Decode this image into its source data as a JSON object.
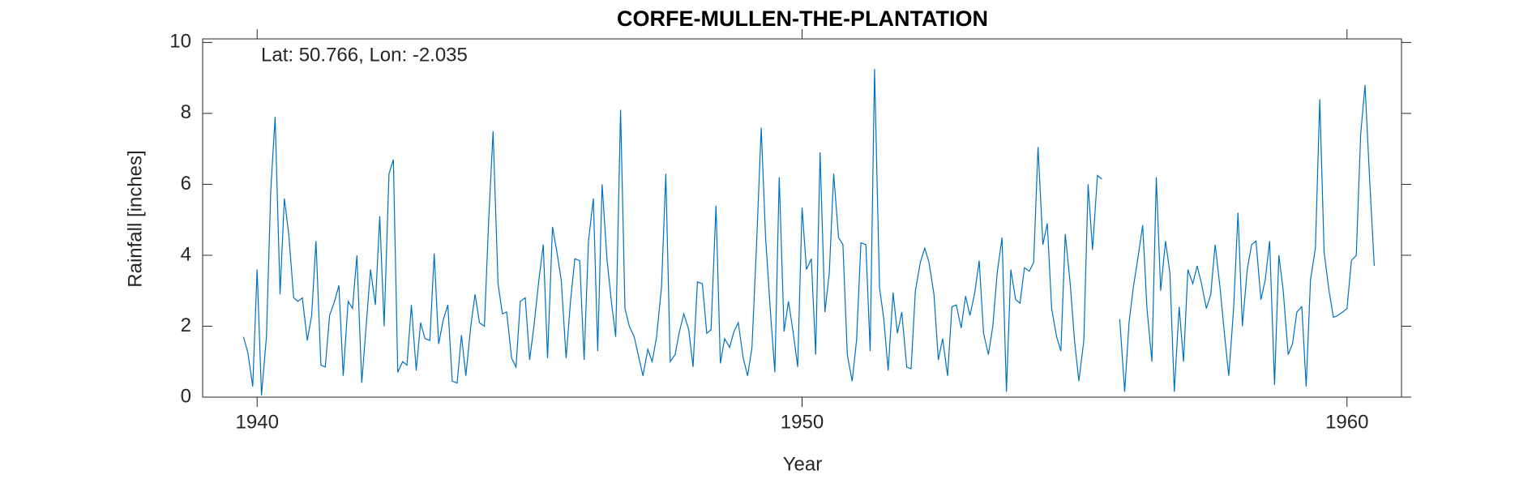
{
  "chart_data": {
    "type": "line",
    "title": "CORFE-MULLEN-THE-PLANTATION",
    "annotation": "Lat: 50.766, Lon: -2.035",
    "xlabel": "Year",
    "ylabel": "Rainfall [inches]",
    "xlim": [
      1939,
      1961
    ],
    "xticks": [
      1940,
      1950,
      1960
    ],
    "ylim": [
      0,
      10.1
    ],
    "yticks": [
      0,
      2,
      4,
      6,
      8,
      10
    ],
    "grid": false,
    "series": [
      {
        "name": "Rainfall",
        "color": "#0072bd",
        "x": [
          1939.75,
          1939.83,
          1939.92,
          1940,
          1940.08,
          1940.17,
          1940.25,
          1940.33,
          1940.42,
          1940.5,
          1940.58,
          1940.67,
          1940.75,
          1940.83,
          1940.92,
          1941,
          1941.08,
          1941.17,
          1941.25,
          1941.33,
          1941.42,
          1941.5,
          1941.58,
          1941.67,
          1941.75,
          1941.83,
          1941.92,
          1942,
          1942.08,
          1942.17,
          1942.25,
          1942.33,
          1942.42,
          1942.5,
          1942.58,
          1942.67,
          1942.75,
          1942.83,
          1942.92,
          1943,
          1943.08,
          1943.17,
          1943.25,
          1943.33,
          1943.42,
          1943.5,
          1943.58,
          1943.67,
          1943.75,
          1943.83,
          1943.92,
          1944,
          1944.08,
          1944.17,
          1944.25,
          1944.33,
          1944.42,
          1944.5,
          1944.58,
          1944.67,
          1944.75,
          1944.83,
          1944.92,
          1945,
          1945.08,
          1945.17,
          1945.25,
          1945.33,
          1945.42,
          1945.5,
          1945.58,
          1945.67,
          1945.75,
          1945.83,
          1945.92,
          1946,
          1946.08,
          1946.17,
          1946.25,
          1946.33,
          1946.42,
          1946.5,
          1946.58,
          1946.67,
          1946.75,
          1946.83,
          1946.92,
          1947,
          1947.08,
          1947.17,
          1947.25,
          1947.33,
          1947.42,
          1947.5,
          1947.58,
          1947.67,
          1947.75,
          1947.83,
          1947.92,
          1948,
          1948.08,
          1948.17,
          1948.25,
          1948.33,
          1948.42,
          1948.5,
          1948.58,
          1948.67,
          1948.75,
          1948.83,
          1948.92,
          1949,
          1949.08,
          1949.17,
          1949.25,
          1949.33,
          1949.42,
          1949.5,
          1949.58,
          1949.67,
          1949.75,
          1949.83,
          1949.92,
          1950,
          1950.08,
          1950.17,
          1950.25,
          1950.33,
          1950.42,
          1950.5,
          1950.58,
          1950.67,
          1950.75,
          1950.83,
          1950.92,
          1951,
          1951.08,
          1951.17,
          1951.25,
          1951.33,
          1951.42,
          1951.5,
          1951.58,
          1951.67,
          1951.75,
          1951.83,
          1951.92,
          1952,
          1952.08,
          1952.17,
          1952.25,
          1952.33,
          1952.42,
          1952.5,
          1952.58,
          1952.67,
          1952.75,
          1952.83,
          1952.92,
          1953,
          1953.08,
          1953.17,
          1953.25,
          1953.33,
          1953.42,
          1953.5,
          1953.58,
          1953.67,
          1953.75,
          1953.83,
          1953.92,
          1954,
          1954.08,
          1954.17,
          1954.25,
          1954.33,
          1954.42,
          1954.5,
          1954.58,
          1954.67,
          1954.75,
          1954.83,
          1954.92,
          1955,
          1955.08,
          1955.17,
          1955.25,
          1955.33,
          1955.42,
          1955.5,
          1955.58,
          1955.67,
          1955.75,
          1955.83,
          1955.92,
          1956,
          1956.08,
          1956.17,
          1956.25,
          1956.33,
          1956.42,
          1956.5,
          1956.58,
          1956.67,
          1956.75,
          1956.83,
          1956.92,
          1957,
          1957.08,
          1957.17,
          1957.25,
          1957.33,
          1957.42,
          1957.5,
          1957.58,
          1957.67,
          1957.75,
          1957.83,
          1957.92,
          1958,
          1958.08,
          1958.17,
          1958.25,
          1958.33,
          1958.42,
          1958.5,
          1958.58,
          1958.67,
          1958.75,
          1958.83,
          1958.92,
          1959,
          1959.08,
          1959.17,
          1959.25,
          1959.33,
          1959.42,
          1959.5,
          1959.58,
          1959.67,
          1959.75,
          1959.83,
          1959.92,
          1960,
          1960.08,
          1960.17,
          1960.25,
          1960.33,
          1960.42,
          1960.5
        ],
        "values": [
          1.7,
          1.25,
          0.3,
          3.6,
          0.05,
          1.7,
          5.8,
          7.9,
          2.9,
          5.6,
          4.6,
          2.8,
          2.7,
          2.8,
          1.6,
          2.3,
          4.4,
          0.9,
          0.85,
          2.3,
          2.7,
          3.15,
          0.6,
          2.7,
          2.5,
          4.0,
          0.4,
          2.0,
          3.6,
          2.6,
          5.1,
          2.0,
          6.3,
          6.7,
          0.7,
          1.0,
          0.9,
          2.6,
          0.75,
          2.1,
          1.65,
          1.6,
          4.05,
          1.5,
          2.2,
          2.6,
          0.45,
          0.4,
          1.75,
          0.6,
          2.0,
          2.9,
          2.1,
          2.0,
          5.0,
          7.5,
          3.2,
          2.35,
          2.4,
          1.1,
          0.85,
          2.7,
          2.8,
          1.05,
          2.0,
          3.3,
          4.3,
          1.1,
          4.8,
          4.1,
          3.3,
          1.1,
          2.7,
          3.9,
          3.85,
          1.05,
          4.4,
          5.6,
          1.3,
          6.0,
          3.9,
          2.7,
          1.7,
          8.1,
          2.5,
          2.0,
          1.7,
          1.15,
          0.6,
          1.35,
          1.0,
          1.7,
          3.1,
          6.3,
          1.0,
          1.2,
          1.85,
          2.35,
          1.9,
          0.85,
          3.25,
          3.2,
          1.8,
          1.9,
          5.4,
          0.95,
          1.65,
          1.4,
          1.85,
          2.1,
          1.1,
          0.6,
          1.4,
          4.5,
          7.6,
          4.5,
          2.4,
          0.7,
          6.2,
          1.85,
          2.7,
          1.9,
          0.85,
          5.35,
          3.6,
          3.9,
          1.2,
          6.9,
          2.4,
          3.5,
          6.3,
          4.5,
          4.3,
          1.2,
          0.45,
          1.6,
          4.35,
          4.3,
          1.3,
          9.25,
          3.1,
          2.2,
          0.75,
          2.95,
          1.8,
          2.4,
          0.85,
          0.8,
          3.0,
          3.8,
          4.2,
          3.8,
          2.9,
          1.05,
          1.65,
          0.6,
          2.55,
          2.6,
          1.95,
          2.85,
          2.3,
          2.95,
          3.85,
          1.8,
          1.2,
          2.0,
          3.5,
          4.5,
          0.15,
          3.6,
          2.75,
          2.65,
          3.65,
          3.55,
          3.8,
          7.05,
          4.3,
          4.9,
          2.5,
          1.7,
          1.3,
          4.6,
          3.2,
          1.6,
          0.45,
          1.6,
          6.0,
          4.15,
          6.25,
          6.15,
          null,
          null,
          null,
          2.2,
          0.15,
          2.1,
          3.1,
          4.0,
          4.85,
          2.5,
          1.0,
          6.2,
          3.0,
          4.4,
          3.5,
          0.15,
          2.55,
          1.0,
          3.6,
          3.2,
          3.7,
          3.2,
          2.5,
          2.9,
          4.3,
          3.1,
          1.8,
          0.6,
          2.5,
          5.2,
          2.0,
          3.6,
          4.3,
          4.4,
          2.75,
          3.3,
          4.4,
          0.35,
          4.0,
          3.0,
          1.2,
          1.5,
          2.4,
          2.55,
          0.3,
          3.3,
          4.2,
          8.4,
          4.1,
          3.0,
          2.25,
          2.3,
          2.4,
          2.5,
          3.85,
          4.0,
          7.4,
          8.8,
          6.0,
          3.7
        ]
      }
    ]
  }
}
